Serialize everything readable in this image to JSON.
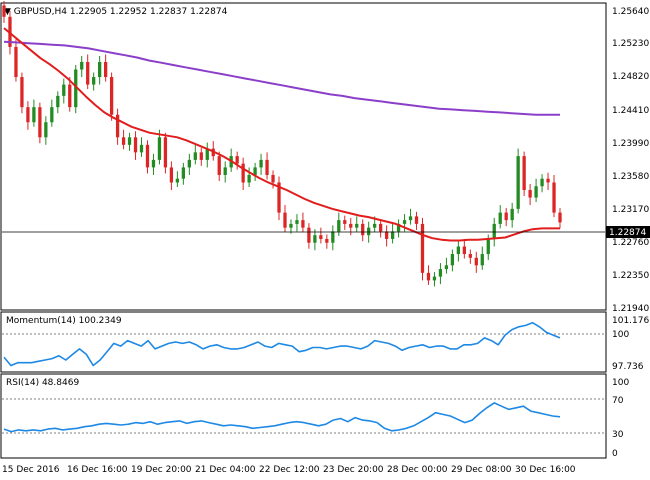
{
  "header": {
    "symbol": "GBPUSD,H4",
    "ohlc": "1.22905 1.22952 1.22837 1.22874"
  },
  "colors": {
    "bull": "#228b22",
    "bear": "#dc2626",
    "sma_short": "#e11d1d",
    "sma_long": "#8b3fc9",
    "oscillator": "#1e88e5",
    "frame": "#000000"
  },
  "chart_data": [
    {
      "type": "candlestick",
      "title": "GBPUSD,H4",
      "ylim": [
        1.2172,
        1.2577
      ],
      "price_ticks": [
        "1.25640",
        "1.25230",
        "1.24820",
        "1.24410",
        "1.23990",
        "1.23580",
        "1.23170",
        "1.22760",
        "1.22350",
        "1.21940"
      ],
      "current_price": "1.22874",
      "x_labels": [
        "15 Dec 2016",
        "16 Dec 16:00",
        "19 Dec 20:00",
        "21 Dec 04:00",
        "22 Dec 12:00",
        "23 Dec 20:00",
        "28 Dec 00:00",
        "29 Dec 08:00",
        "30 Dec 16:00"
      ],
      "candles_close": [
        1.256,
        1.252,
        1.248,
        1.244,
        1.242,
        1.244,
        1.24,
        1.242,
        1.244,
        1.2455,
        1.247,
        1.244,
        1.249,
        1.25,
        1.247,
        1.248,
        1.25,
        1.248,
        1.243,
        1.24,
        1.239,
        1.24,
        1.238,
        1.239,
        1.236,
        1.237,
        1.24,
        1.236,
        1.234,
        1.2345,
        1.236,
        1.237,
        1.238,
        1.237,
        1.2385,
        1.2375,
        1.235,
        1.236,
        1.2375,
        1.2365,
        1.234,
        1.235,
        1.236,
        1.237,
        1.235,
        1.234,
        1.23,
        1.228,
        1.2285,
        1.229,
        1.228,
        1.226,
        1.227,
        1.2265,
        1.226,
        1.2275,
        1.229,
        1.2285,
        1.228,
        1.2285,
        1.227,
        1.228,
        1.2285,
        1.2275,
        1.2265,
        1.2275,
        1.2285,
        1.229,
        1.2295,
        1.2285,
        1.222,
        1.221,
        1.2215,
        1.2225,
        1.223,
        1.2245,
        1.2255,
        1.2245,
        1.224,
        1.223,
        1.2245,
        1.2265,
        1.2285,
        1.23,
        1.229,
        1.2305,
        1.2375,
        1.233,
        1.232,
        1.2335,
        1.2345,
        1.234,
        1.23,
        1.2287
      ],
      "series": [
        {
          "name": "MA fast",
          "values": [
            1.2545,
            1.2535,
            1.2525,
            1.2515,
            1.2505,
            1.2497,
            1.2488,
            1.2478,
            1.2466,
            1.2454,
            1.2443,
            1.2433,
            1.2426,
            1.242,
            1.2414,
            1.241,
            1.2406,
            1.2404,
            1.2402,
            1.24,
            1.2396,
            1.2391,
            1.2386,
            1.2381,
            1.2375,
            1.2368,
            1.236,
            1.2353,
            1.2346,
            1.234,
            1.2335,
            1.233,
            1.2324,
            1.2318,
            1.2313,
            1.2309,
            1.2305,
            1.2302,
            1.2299,
            1.2296,
            1.2294,
            1.2291,
            1.2288,
            1.2285,
            1.228,
            1.2275,
            1.227,
            1.2266,
            1.2264,
            1.2263,
            1.2263,
            1.2264,
            1.2264,
            1.2265,
            1.2266,
            1.2267,
            1.2271,
            1.2275,
            1.2278,
            1.2279,
            1.2279,
            1.2279
          ]
        },
        {
          "name": "MA slow",
          "values": [
            1.2527,
            1.2526,
            1.2525,
            1.2524,
            1.2523,
            1.2522,
            1.252,
            1.2518,
            1.2515,
            1.2512,
            1.2509,
            1.2506,
            1.2502,
            1.2499,
            1.2496,
            1.2493,
            1.249,
            1.2487,
            1.2484,
            1.2481,
            1.2478,
            1.2475,
            1.2472,
            1.2469,
            1.2466,
            1.2463,
            1.246,
            1.2457,
            1.2455,
            1.2452,
            1.245,
            1.2448,
            1.2446,
            1.2444,
            1.2442,
            1.244,
            1.2438,
            1.2437,
            1.2436,
            1.2435,
            1.2434,
            1.2433,
            1.2432,
            1.2431,
            1.243,
            1.243,
            1.243
          ]
        }
      ]
    },
    {
      "type": "line",
      "title": "Momentum(14) 100.2349",
      "ylim": [
        99.4,
        101.5
      ],
      "ticks": [
        "101.1761",
        "100",
        "97.736"
      ],
      "series": [
        {
          "name": "Momentum(14)",
          "values": [
            99.9,
            99.6,
            99.7,
            99.7,
            99.7,
            99.75,
            99.8,
            99.85,
            99.95,
            99.8,
            100.0,
            100.2,
            100.0,
            99.6,
            99.8,
            100.1,
            100.4,
            100.3,
            100.5,
            100.4,
            100.3,
            100.5,
            100.2,
            100.3,
            100.4,
            100.45,
            100.4,
            100.45,
            100.35,
            100.2,
            100.3,
            100.35,
            100.25,
            100.2,
            100.2,
            100.25,
            100.35,
            100.45,
            100.3,
            100.25,
            100.4,
            100.35,
            100.3,
            100.1,
            100.15,
            100.25,
            100.25,
            100.2,
            100.25,
            100.3,
            100.3,
            100.25,
            100.2,
            100.3,
            100.5,
            100.45,
            100.4,
            100.3,
            100.15,
            100.25,
            100.3,
            100.35,
            100.25,
            100.3,
            100.3,
            100.2,
            100.2,
            100.35,
            100.35,
            100.4,
            100.6,
            100.5,
            100.35,
            100.7,
            100.9,
            101.0,
            101.05,
            101.15,
            101.0,
            100.8,
            100.7,
            100.6
          ]
        }
      ]
    },
    {
      "type": "line",
      "title": "RSI(14) 48.8469",
      "ylim": [
        0,
        100
      ],
      "ticks": [
        "100",
        "70",
        "30",
        "0"
      ],
      "series": [
        {
          "name": "RSI(14)",
          "values": [
            34,
            31,
            33,
            32,
            33,
            32,
            34,
            35,
            33,
            34,
            35,
            37,
            38,
            40,
            41,
            40,
            39,
            40,
            42,
            41,
            43,
            40,
            42,
            43,
            44,
            41,
            43,
            44,
            42,
            40,
            38,
            39,
            38,
            37,
            35,
            36,
            37,
            38,
            40,
            42,
            43,
            42,
            40,
            38,
            40,
            45,
            47,
            43,
            48,
            45,
            44,
            42,
            35,
            32,
            33,
            35,
            38,
            43,
            48,
            54,
            52,
            50,
            46,
            42,
            45,
            53,
            60,
            66,
            62,
            58,
            60,
            62,
            56,
            54,
            52,
            50,
            49
          ]
        }
      ]
    }
  ]
}
